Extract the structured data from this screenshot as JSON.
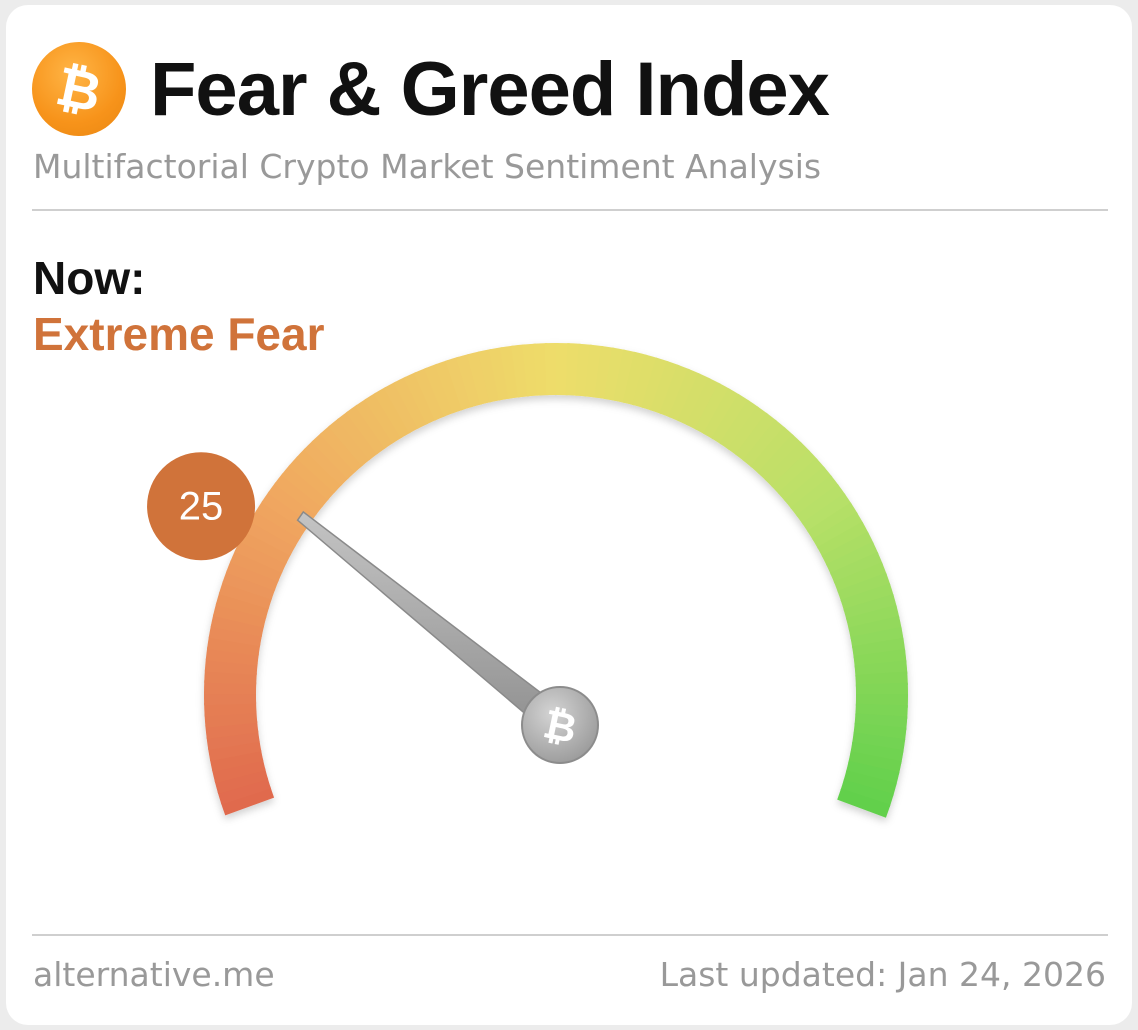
{
  "header": {
    "logo_glyph": "₿",
    "title": "Fear & Greed Index",
    "subtitle": "Multifactorial Crypto Market Sentiment Analysis"
  },
  "now": {
    "label": "Now:",
    "classification": "Extreme Fear"
  },
  "chart_data": {
    "type": "gauge",
    "value": 25,
    "value_label": "25",
    "range": [
      0,
      100
    ],
    "colors": {
      "extreme_fear": "#e06a4e",
      "fear": "#f0a860",
      "neutral": "#eedd6a",
      "greed": "#b8e068",
      "extreme_greed": "#62d04c",
      "badge": "#d0733a",
      "needle": "#a9a9a9"
    },
    "center_icon": "bitcoin-icon",
    "center_glyph": "₿"
  },
  "footer": {
    "source": "alternative.me",
    "updated": "Last updated: Jan 24, 2026"
  }
}
